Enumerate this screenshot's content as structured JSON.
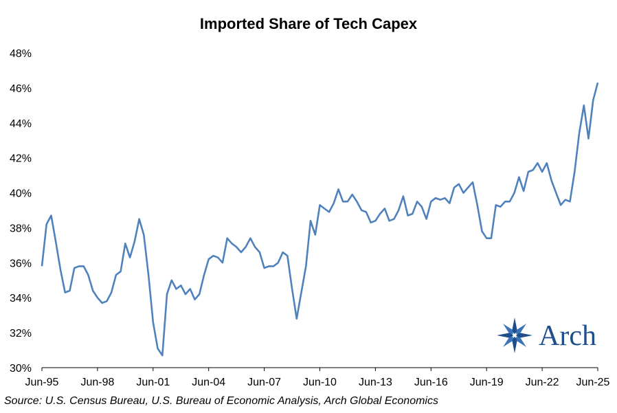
{
  "chart_data": {
    "type": "line",
    "title": "Imported Share of Tech Capex",
    "xlabel": "",
    "ylabel": "",
    "ylim": [
      30,
      48
    ],
    "y_ticks": [
      30,
      32,
      34,
      36,
      38,
      40,
      42,
      44,
      46,
      48
    ],
    "y_tick_labels": [
      "30%",
      "32%",
      "34%",
      "36%",
      "38%",
      "40%",
      "42%",
      "44%",
      "46%",
      "48%"
    ],
    "x_tick_labels": [
      "Jun-95",
      "Jun-98",
      "Jun-01",
      "Jun-04",
      "Jun-07",
      "Jun-10",
      "Jun-13",
      "Jun-16",
      "Jun-19",
      "Jun-22",
      "Jun-25"
    ],
    "x_tick_index": [
      0,
      12,
      24,
      36,
      48,
      60,
      72,
      84,
      96,
      108,
      120
    ],
    "grid": false,
    "series": [
      {
        "name": "Imported Share of Tech Capex",
        "color": "#4f81bd",
        "values": [
          35.8,
          38.2,
          38.7,
          37.2,
          35.6,
          34.3,
          34.4,
          35.7,
          35.8,
          35.8,
          35.3,
          34.4,
          34.0,
          33.7,
          33.8,
          34.3,
          35.3,
          35.5,
          37.1,
          36.3,
          37.2,
          38.5,
          37.6,
          35.3,
          32.6,
          31.1,
          30.7,
          34.2,
          35.0,
          34.5,
          34.7,
          34.2,
          34.5,
          33.9,
          34.2,
          35.3,
          36.2,
          36.4,
          36.3,
          36.0,
          37.4,
          37.1,
          36.9,
          36.6,
          36.9,
          37.4,
          36.9,
          36.6,
          35.7,
          35.8,
          35.8,
          36.0,
          36.6,
          36.4,
          34.5,
          32.8,
          34.3,
          35.8,
          38.4,
          37.6,
          39.3,
          39.1,
          38.9,
          39.4,
          40.2,
          39.5,
          39.5,
          39.9,
          39.5,
          39.0,
          38.9,
          38.3,
          38.4,
          38.8,
          39.1,
          38.4,
          38.5,
          39.0,
          39.8,
          38.7,
          38.8,
          39.5,
          39.2,
          38.5,
          39.5,
          39.7,
          39.6,
          39.7,
          39.4,
          40.3,
          40.5,
          40.0,
          40.3,
          40.6,
          39.3,
          37.8,
          37.4,
          37.4,
          39.3,
          39.2,
          39.5,
          39.5,
          40.0,
          40.9,
          40.1,
          41.2,
          41.3,
          41.7,
          41.2,
          41.7,
          40.7,
          40.0,
          39.3,
          39.6,
          39.5,
          41.2,
          43.4,
          45.0,
          43.1,
          45.3,
          46.3
        ]
      }
    ]
  },
  "source": "Source: U.S. Census Bureau, U.S. Bureau of Economic Analysis, Arch Global Economics",
  "logo": {
    "text": "Arch",
    "color": "#1f4e8c",
    "icon": "compass-star-icon"
  }
}
